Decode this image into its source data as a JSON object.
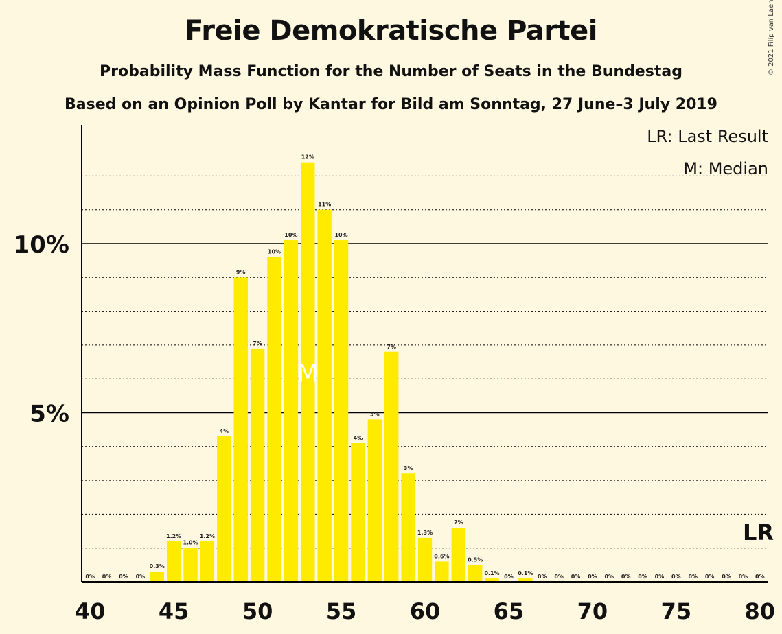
{
  "chart_data": {
    "type": "bar",
    "title": "Freie Demokratische Partei",
    "subtitle": "Probability Mass Function for the Number of Seats in the Bundestag",
    "subtitle2": "Based on an Opinion Poll by Kantar for Bild am Sonntag, 27 June–3 July 2019",
    "copyright": "© 2021 Filip van Laenen",
    "legend": {
      "lr": "LR: Last Result",
      "m": "M: Median",
      "placement": "top-right"
    },
    "x": [
      40,
      41,
      42,
      43,
      44,
      45,
      46,
      47,
      48,
      49,
      50,
      51,
      52,
      53,
      54,
      55,
      56,
      57,
      58,
      59,
      60,
      61,
      62,
      63,
      64,
      65,
      66,
      67,
      68,
      69,
      70,
      71,
      72,
      73,
      74,
      75,
      76,
      77,
      78,
      79,
      80
    ],
    "values": [
      0,
      0,
      0,
      0,
      0.3,
      1.2,
      1.0,
      1.2,
      4.3,
      9.0,
      6.9,
      9.6,
      10.1,
      12.4,
      11.0,
      10.1,
      4.1,
      4.8,
      6.8,
      3.2,
      1.3,
      0.6,
      1.6,
      0.5,
      0.1,
      0,
      0.1,
      0,
      0,
      0,
      0,
      0,
      0,
      0,
      0,
      0,
      0,
      0,
      0,
      0,
      0
    ],
    "labels": [
      "0%",
      "0%",
      "0%",
      "0%",
      "0.3%",
      "1.2%",
      "1.0%",
      "1.2%",
      "4%",
      "9%",
      "7%",
      "10%",
      "10%",
      "12%",
      "11%",
      "10%",
      "4%",
      "5%",
      "7%",
      "3%",
      "1.3%",
      "0.6%",
      "2%",
      "0.5%",
      "0.1%",
      "0%",
      "0.1%",
      "0%",
      "0%",
      "0%",
      "0%",
      "0%",
      "0%",
      "0%",
      "0%",
      "0%",
      "0%",
      "0%",
      "0%",
      "0%",
      "0%"
    ],
    "xticks": [
      40,
      45,
      50,
      55,
      60,
      65,
      70,
      75,
      80
    ],
    "yticks": [
      {
        "value": 5,
        "label": "5%"
      },
      {
        "value": 10,
        "label": "10%"
      }
    ],
    "ylim": [
      0,
      13.5
    ],
    "median": 53,
    "median_label": "M",
    "last_result": 80,
    "last_result_label": "LR",
    "colors": {
      "bar": "#FFEB00",
      "background": "#FFF8E1",
      "median_text": "#FFFFFF"
    },
    "grid": "dotted at 1% steps, solid at 5%"
  }
}
